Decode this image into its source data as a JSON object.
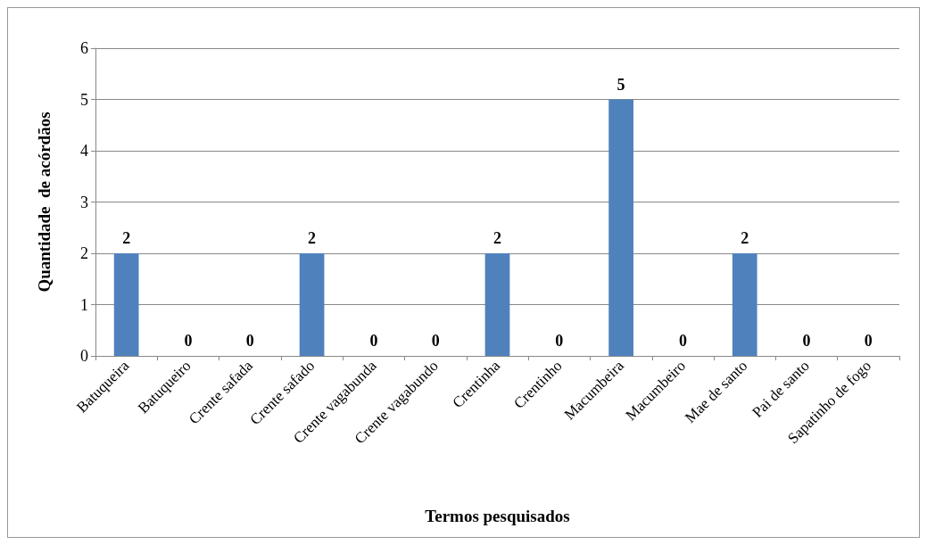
{
  "chart_data": {
    "type": "bar",
    "xlabel": "Termos pesquisados",
    "ylabel": "Quantidade  de acórdãos",
    "categories": [
      "Batuqueira",
      "Batuqueiro",
      "Crente safada",
      "Crente safado",
      "Crente vagabunda",
      "Crente vagabundo",
      "Crentinha",
      "Crentinho",
      "Macumbeira",
      "Macumbeiro",
      "Mae de santo",
      "Pai de santo",
      "Sapatinho de fogo"
    ],
    "values": [
      2,
      0,
      0,
      2,
      0,
      0,
      2,
      0,
      5,
      0,
      2,
      0,
      0
    ],
    "color": "#4f81bd",
    "ylim": [
      0,
      6
    ],
    "yticks": [
      0,
      1,
      2,
      3,
      4,
      5,
      6
    ],
    "grid": "y",
    "data_labels": true
  }
}
